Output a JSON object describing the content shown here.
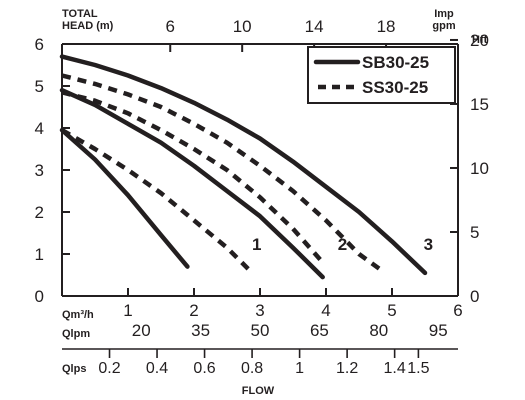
{
  "chart_data": {
    "type": "line",
    "title": "",
    "xlabel": "FLOW",
    "ylabel": "TOTAL HEAD (m)",
    "xlim": [
      0,
      6
    ],
    "ylim": [
      0,
      6
    ],
    "grid": false,
    "legend_position": "top-right",
    "axes": {
      "left": {
        "label_line1": "TOTAL",
        "label_line2": "HEAD (m)",
        "ticks": [
          "0",
          "1",
          "2",
          "3",
          "4",
          "5",
          "6"
        ]
      },
      "top": {
        "label_line1": "Imp",
        "label_line2": "gpm",
        "ticks": [
          "6",
          "10",
          "14",
          "18"
        ],
        "tick_values_m3h": [
          1.64,
          2.73,
          3.82,
          4.91
        ]
      },
      "right": {
        "label": "Hft",
        "ticks": [
          "0",
          "5",
          "10",
          "15",
          "20"
        ],
        "tick_values_m": [
          0,
          1.524,
          3.048,
          4.572,
          6.096
        ]
      },
      "bottom1": {
        "unit": "Qm³/h",
        "ticks": [
          "1",
          "2",
          "3",
          "4",
          "5",
          "6"
        ]
      },
      "bottom2": {
        "unit": "Qlpm",
        "ticks": [
          "20",
          "35",
          "50",
          "65",
          "80",
          "95"
        ],
        "tick_values_m3h": [
          1.2,
          2.1,
          3.0,
          3.9,
          4.8,
          5.7
        ]
      },
      "bottom3": {
        "unit": "Qlps",
        "ticks": [
          "0.2",
          "0.4",
          "0.6",
          "0.8",
          "1",
          "1.2",
          "1.4",
          "1.5"
        ],
        "tick_values_m3h": [
          0.72,
          1.44,
          2.16,
          2.88,
          3.6,
          4.32,
          5.04,
          5.4
        ]
      }
    },
    "legend": [
      {
        "label": "SB30-25",
        "style": "solid"
      },
      {
        "label": "SS30-25",
        "style": "dashed"
      }
    ],
    "series": [
      {
        "name": "SB30-25",
        "speed": "1",
        "style": "solid",
        "x": [
          0,
          0.5,
          1,
          1.5,
          1.9
        ],
        "y": [
          3.95,
          3.25,
          2.4,
          1.45,
          0.7
        ]
      },
      {
        "name": "SS30-25",
        "speed": "1",
        "style": "dashed",
        "x": [
          0,
          0.5,
          1,
          1.5,
          2,
          2.5,
          2.85
        ],
        "y": [
          3.95,
          3.5,
          3.0,
          2.45,
          1.8,
          1.15,
          0.6
        ]
      },
      {
        "name": "SB30-25",
        "speed": "2",
        "style": "solid",
        "x": [
          0,
          0.5,
          1,
          1.5,
          2,
          2.5,
          3,
          3.5,
          3.95
        ],
        "y": [
          4.9,
          4.55,
          4.1,
          3.65,
          3.1,
          2.5,
          1.9,
          1.15,
          0.45
        ]
      },
      {
        "name": "SS30-25",
        "speed": "2",
        "style": "dashed",
        "x": [
          0,
          0.5,
          1,
          1.5,
          2,
          2.5,
          3,
          3.5,
          3.95
        ],
        "y": [
          4.85,
          4.65,
          4.35,
          3.95,
          3.5,
          3.0,
          2.35,
          1.6,
          0.8
        ]
      },
      {
        "name": "SS30-25",
        "speed": "3",
        "style": "dashed",
        "x": [
          0,
          0.5,
          1,
          1.5,
          2,
          2.5,
          3,
          3.5,
          4,
          4.5,
          4.85
        ],
        "y": [
          5.25,
          5.05,
          4.8,
          4.5,
          4.1,
          3.65,
          3.1,
          2.5,
          1.8,
          1.0,
          0.6
        ]
      },
      {
        "name": "SB30-25",
        "speed": "3",
        "style": "solid",
        "x": [
          0,
          0.5,
          1,
          1.5,
          2,
          2.5,
          3,
          3.5,
          4,
          4.5,
          5,
          5.5
        ],
        "y": [
          5.7,
          5.5,
          5.25,
          4.95,
          4.6,
          4.2,
          3.75,
          3.2,
          2.6,
          2.0,
          1.3,
          0.55
        ]
      }
    ],
    "curve_labels": [
      {
        "text": "1",
        "x": 2.95,
        "y": 1.1
      },
      {
        "text": "2",
        "x": 4.25,
        "y": 1.1
      },
      {
        "text": "3",
        "x": 5.55,
        "y": 1.1
      }
    ]
  }
}
